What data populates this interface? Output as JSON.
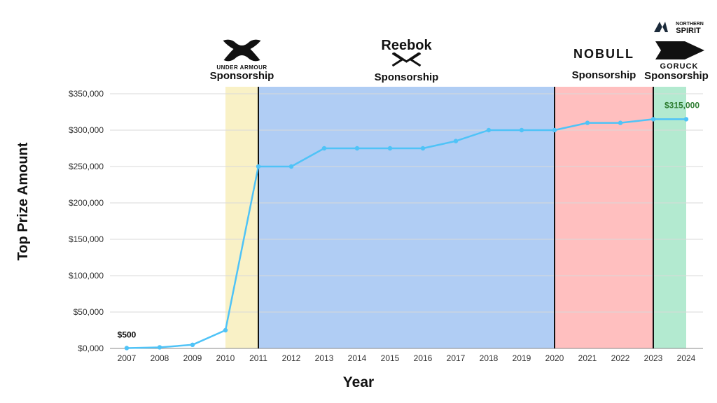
{
  "chart_data": {
    "type": "line",
    "title": "",
    "xlabel": "Year",
    "ylabel": "Top Prize Amount",
    "ylim": [
      0,
      350000
    ],
    "y_ticks": [
      {
        "value": 0,
        "label": "$0,000"
      },
      {
        "value": 50000,
        "label": "$50,000"
      },
      {
        "value": 100000,
        "label": "$100,000"
      },
      {
        "value": 150000,
        "label": "$150,000"
      },
      {
        "value": 200000,
        "label": "$200,000"
      },
      {
        "value": 250000,
        "label": "$250,000"
      },
      {
        "value": 300000,
        "label": "$300,000"
      },
      {
        "value": 350000,
        "label": "$350,000"
      }
    ],
    "grid": true,
    "legend": "none",
    "categories": [
      "2007",
      "2008",
      "2009",
      "2010",
      "2011",
      "2012",
      "2013",
      "2014",
      "2015",
      "2016",
      "2017",
      "2018",
      "2019",
      "2020",
      "2021",
      "2022",
      "2023",
      "2024"
    ],
    "series": [
      {
        "values": [
          500,
          1500,
          5000,
          25000,
          250000,
          250000,
          275000,
          275000,
          275000,
          275000,
          285000,
          300000,
          300000,
          300000,
          310000,
          310000,
          315000,
          315000
        ]
      }
    ],
    "line_color": "#4fc3f7",
    "annotations": [
      {
        "category": "2007",
        "text": "$500",
        "color": "#111111"
      },
      {
        "category": "2024",
        "text": "$315,000",
        "color": "#2e7d32"
      }
    ],
    "bands": [
      {
        "from": "2010",
        "to": "2011",
        "color": "#f9f1c6",
        "label": "Sponsorship",
        "logo": "UNDER ARMOUR",
        "logo_icon": "under-armour-logo-icon"
      },
      {
        "from": "2011",
        "to": "2020",
        "color": "#b0cdf4",
        "label": "Sponsorship",
        "logo": "Reebok",
        "logo_icon": "reebok-delta-logo-icon"
      },
      {
        "from": "2020",
        "to": "2023",
        "color": "#ffbfbf",
        "label": "Sponsorship",
        "logo": "NOBULL",
        "logo_icon": "nobull-logo-icon"
      },
      {
        "from": "2023",
        "to": "2024",
        "color": "#b3ead0",
        "label": "Sponsorship",
        "logo": "GORUCK",
        "logo_icon": "goruck-spearhead-logo-icon",
        "logo2": "NORTHERN SPIRIT",
        "logo2_icon": "northern-spirit-logo-icon"
      }
    ],
    "divider_years": [
      "2011",
      "2020",
      "2023"
    ]
  }
}
